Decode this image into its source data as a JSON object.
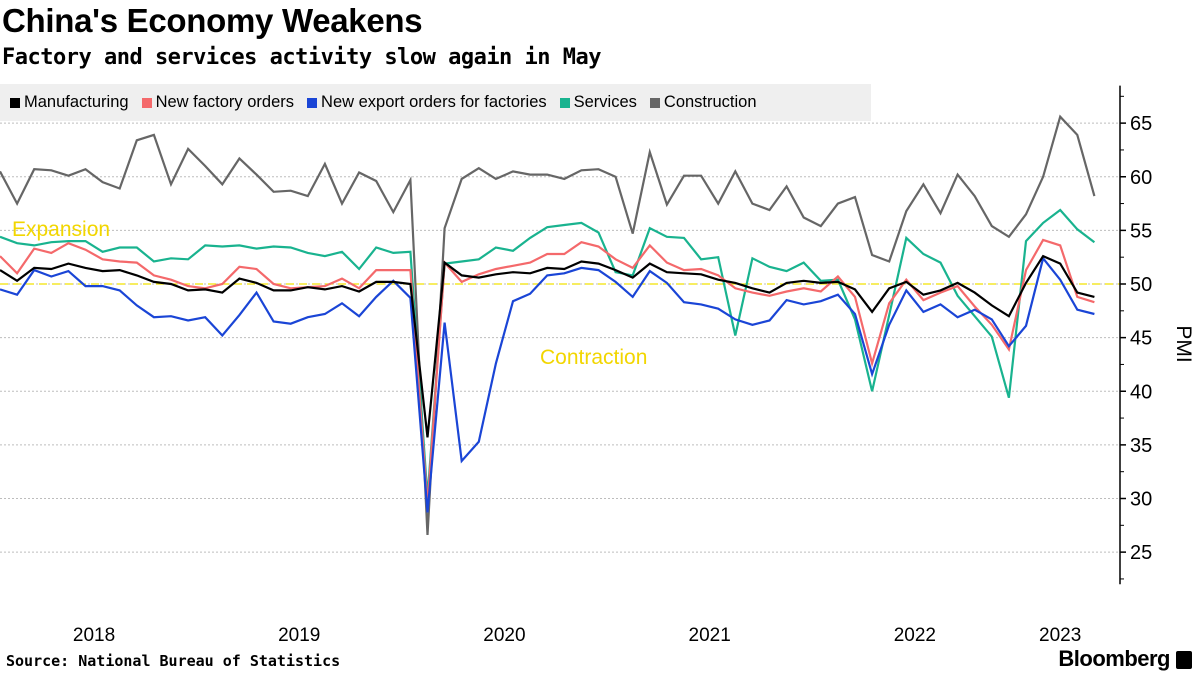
{
  "title": "China's Economy Weakens",
  "subtitle": "Factory and services activity slow again in May",
  "source": "Source: National Bureau of Statistics",
  "logo": "Bloomberg",
  "chart_data": {
    "type": "line",
    "x_start": "2018-01",
    "x_end": "2023-05",
    "frequency": "monthly",
    "xticks": [
      "2018",
      "2019",
      "2020",
      "2021",
      "2022",
      "2023"
    ],
    "ylabel": "PMI",
    "ylim": [
      22,
      68.5
    ],
    "yticks": [
      25,
      30,
      35,
      40,
      45,
      50,
      55,
      60,
      65
    ],
    "grid": true,
    "legend_position": "top-left",
    "reference_line": {
      "value": 50,
      "color": "#f2e200"
    },
    "annotations": [
      {
        "text": "Expansion",
        "color": "#f2d600"
      },
      {
        "text": "Contraction",
        "color": "#f2d600"
      }
    ],
    "series": [
      {
        "name": "Manufacturing",
        "color": "#000000",
        "values": [
          51.3,
          50.3,
          51.5,
          51.4,
          51.9,
          51.5,
          51.2,
          51.3,
          50.8,
          50.2,
          50.0,
          49.4,
          49.5,
          49.2,
          50.5,
          50.1,
          49.4,
          49.4,
          49.7,
          49.5,
          49.8,
          49.3,
          50.2,
          50.2,
          50.0,
          35.7,
          52.0,
          50.8,
          50.6,
          50.9,
          51.1,
          51.0,
          51.5,
          51.4,
          52.1,
          51.9,
          51.3,
          50.6,
          51.9,
          51.1,
          51.0,
          50.9,
          50.4,
          50.1,
          49.6,
          49.2,
          50.1,
          50.3,
          50.1,
          50.2,
          49.5,
          47.4,
          49.6,
          50.2,
          49.0,
          49.4,
          50.1,
          49.2,
          48.0,
          47.0,
          50.1,
          52.6,
          51.9,
          49.2,
          48.8
        ]
      },
      {
        "name": "New factory orders",
        "color": "#f4696b",
        "values": [
          52.6,
          51.0,
          53.3,
          52.9,
          53.8,
          53.2,
          52.3,
          52.1,
          52.0,
          50.8,
          50.4,
          49.8,
          49.6,
          50.0,
          51.6,
          51.4,
          50.0,
          49.6,
          49.7,
          49.8,
          50.5,
          49.6,
          51.3,
          51.3,
          51.3,
          29.3,
          52.0,
          50.2,
          50.9,
          51.4,
          51.7,
          52.0,
          52.8,
          52.8,
          53.9,
          53.5,
          52.3,
          51.5,
          53.6,
          52.0,
          51.3,
          51.4,
          50.8,
          49.6,
          49.2,
          48.9,
          49.3,
          49.6,
          49.3,
          50.7,
          48.8,
          42.6,
          48.2,
          50.4,
          48.5,
          49.2,
          49.8,
          47.9,
          46.2,
          43.9,
          51.3,
          54.1,
          53.6,
          48.8,
          48.3
        ]
      },
      {
        "name": "New export orders for factories",
        "color": "#1a45d6",
        "values": [
          49.5,
          49.0,
          51.3,
          50.7,
          51.2,
          49.8,
          49.8,
          49.4,
          48.0,
          46.9,
          47.0,
          46.6,
          46.9,
          45.2,
          47.1,
          49.2,
          46.5,
          46.3,
          46.9,
          47.2,
          48.2,
          47.0,
          48.8,
          50.3,
          48.7,
          28.7,
          46.4,
          33.5,
          35.3,
          42.6,
          48.4,
          49.1,
          50.8,
          51.0,
          51.5,
          51.3,
          50.2,
          48.8,
          51.2,
          50.1,
          48.3,
          48.1,
          47.7,
          46.7,
          46.2,
          46.6,
          48.5,
          48.1,
          48.4,
          49.0,
          47.2,
          41.6,
          46.2,
          49.4,
          47.4,
          48.1,
          46.9,
          47.6,
          46.7,
          44.2,
          46.1,
          52.4,
          50.4,
          47.6,
          47.2
        ]
      },
      {
        "name": "Services",
        "color": "#19b38f",
        "values": [
          54.4,
          53.8,
          53.6,
          53.9,
          54.0,
          54.0,
          53.0,
          53.4,
          53.4,
          52.1,
          52.4,
          52.3,
          53.6,
          53.5,
          53.6,
          53.3,
          53.5,
          53.4,
          52.9,
          52.6,
          53.0,
          51.4,
          53.4,
          52.9,
          53.0,
          30.1,
          51.9,
          52.1,
          52.3,
          53.4,
          53.1,
          54.3,
          55.3,
          55.5,
          55.7,
          54.8,
          51.1,
          50.8,
          55.2,
          54.4,
          54.3,
          52.3,
          52.5,
          45.2,
          52.4,
          51.6,
          51.2,
          52.0,
          50.3,
          50.4,
          46.7,
          40.0,
          47.1,
          54.3,
          52.8,
          52.0,
          48.9,
          47.0,
          45.1,
          39.4,
          54.0,
          55.7,
          56.9,
          55.1,
          53.9
        ]
      },
      {
        "name": "Construction",
        "color": "#666666",
        "values": [
          60.5,
          57.5,
          60.7,
          60.6,
          60.1,
          60.7,
          59.5,
          58.9,
          63.4,
          63.9,
          59.3,
          62.6,
          61.0,
          59.3,
          61.7,
          60.2,
          58.6,
          58.7,
          58.2,
          61.2,
          57.5,
          60.4,
          59.6,
          56.7,
          59.7,
          26.6,
          55.2,
          59.8,
          60.8,
          59.8,
          60.5,
          60.2,
          60.2,
          59.8,
          60.6,
          60.7,
          60.0,
          54.7,
          62.3,
          57.4,
          60.1,
          60.1,
          57.5,
          60.5,
          57.5,
          56.9,
          59.1,
          56.2,
          55.4,
          57.5,
          58.1,
          52.7,
          52.1,
          56.8,
          59.3,
          56.6,
          60.2,
          58.2,
          55.4,
          54.4,
          56.5,
          60.0,
          65.6,
          63.9,
          58.2
        ]
      }
    ]
  }
}
